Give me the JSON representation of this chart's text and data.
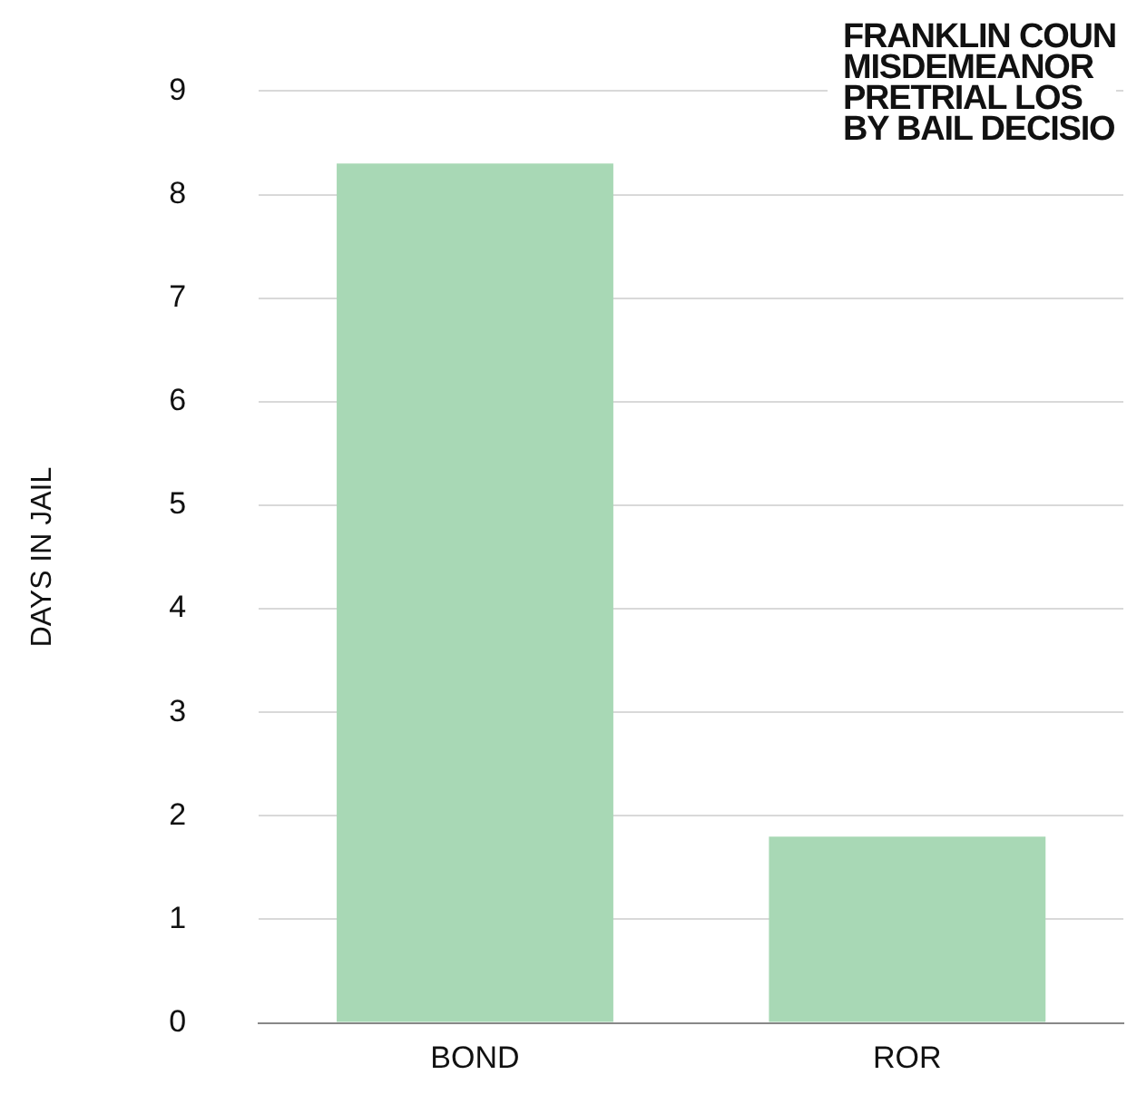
{
  "chart_data": {
    "type": "bar",
    "title": "FRANKLIN COUN\nMISDEMEANOR\nPRETRIAL LOS\nBY BAIL DECISIO",
    "ylabel": "DAYS IN JAIL",
    "categories": [
      "BOND",
      "ROR"
    ],
    "values": [
      8.3,
      1.8
    ],
    "color": "#a8d8b5",
    "ylim": [
      0,
      9
    ],
    "yticks": [
      0,
      1,
      2,
      3,
      4,
      5,
      6,
      7,
      8,
      9
    ],
    "grid": "y",
    "legend": false
  }
}
